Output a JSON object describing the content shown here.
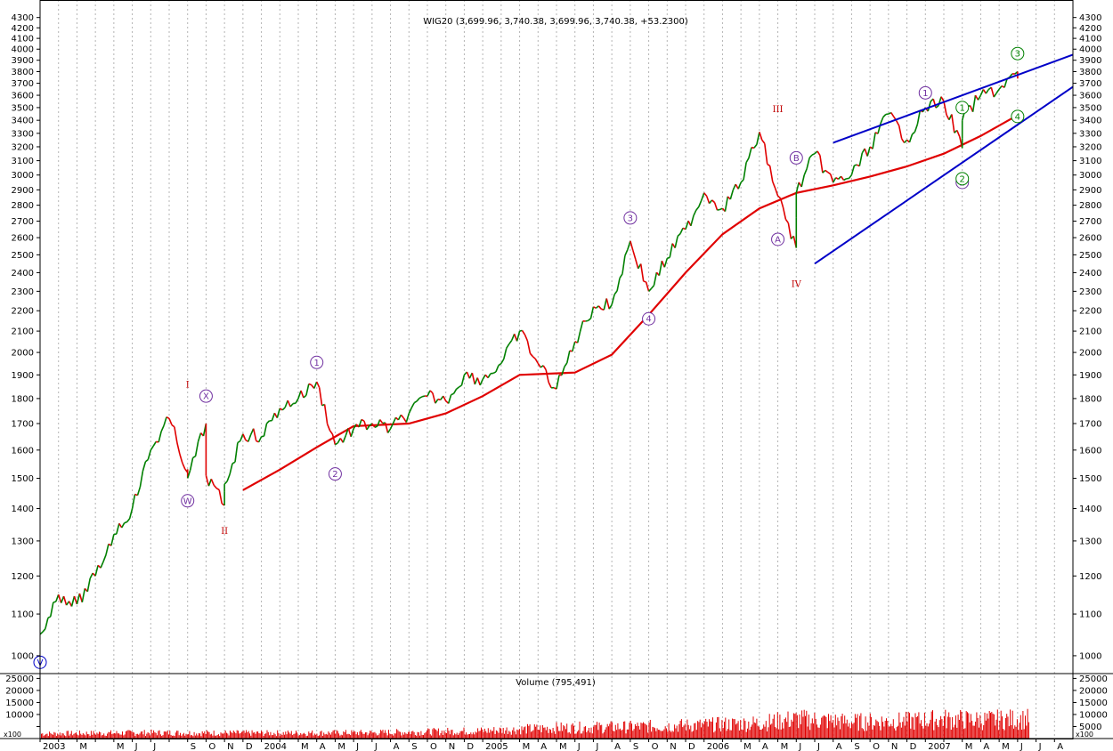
{
  "chart_data": {
    "type": "line",
    "title": "WIG20 (3,699.96, 3,740.38, 3,699.96, 3,740.38, +53.2300)",
    "price": {
      "scale": "log",
      "ylim": [
        960,
        4350
      ],
      "yticks": [
        1000,
        1100,
        1200,
        1300,
        1400,
        1500,
        1600,
        1700,
        1800,
        1900,
        2000,
        2100,
        2200,
        2300,
        2400,
        2500,
        2600,
        2700,
        2800,
        2900,
        3000,
        3100,
        3200,
        3300,
        3400,
        3500,
        3600,
        3700,
        3800,
        3900,
        4000,
        4100,
        4200,
        4300
      ],
      "yticklabels": [
        "1000",
        "1100",
        "1200",
        "1300",
        "1400",
        "1500",
        "1600",
        "1700",
        "1800",
        "1900",
        "2000",
        "2100",
        "2200",
        "2300",
        "2400",
        "2500",
        "2600",
        "2700",
        "2800",
        "2900",
        "3000",
        "3100",
        "3200",
        "3300",
        "3400",
        "3500",
        "3600",
        "3700",
        "3800",
        "3900",
        "4000",
        "4100",
        "4200",
        "4300"
      ],
      "xlim": [
        "2003-01",
        "2007-09"
      ],
      "series": [
        {
          "color": "#008000",
          "x": [
            "2003-01",
            "2003-02",
            "2003-03",
            "2003-04",
            "2003-05",
            "2003-06",
            "2003-07",
            "2003-08",
            "2003-09",
            "2003-09",
            "2003-10",
            "2003-10",
            "2003-11",
            "2003-11",
            "2003-12",
            "2004-01",
            "2004-02",
            "2004-03",
            "2004-04",
            "2004-05",
            "2004-06",
            "2004-07",
            "2004-08",
            "2004-09",
            "2004-10",
            "2004-11",
            "2004-12",
            "2005-01",
            "2005-02",
            "2005-03",
            "2005-04",
            "2005-05",
            "2005-06",
            "2005-07",
            "2005-08",
            "2005-09",
            "2005-10",
            "2005-11",
            "2005-12",
            "2006-01",
            "2006-02",
            "2006-03",
            "2006-04",
            "2006-05",
            "2006-06",
            "2006-06",
            "2006-07",
            "2006-08",
            "2006-09",
            "2006-10",
            "2006-11",
            "2006-12",
            "2007-01",
            "2007-02",
            "2007-03",
            "2007-03",
            "2007-04",
            "2007-05",
            "2007-06",
            "2007-06"
          ],
          "values": [
            1050,
            1150,
            1125,
            1200,
            1320,
            1400,
            1600,
            1720,
            1520,
            1500,
            1700,
            1510,
            1410,
            1480,
            1660,
            1650,
            1760,
            1800,
            1870,
            1620,
            1680,
            1700,
            1680,
            1740,
            1810,
            1790,
            1900,
            1880,
            1950,
            2100,
            1950,
            1840,
            2050,
            2220,
            2230,
            2580,
            2300,
            2480,
            2650,
            2880,
            2780,
            2950,
            3310,
            2860,
            2540,
            2880,
            3150,
            2950,
            3000,
            3200,
            3450,
            3250,
            3500,
            3550,
            3190,
            3400,
            3600,
            3650,
            3800,
            3740
          ]
        }
      ],
      "moving_average": {
        "color": "#e00000",
        "x": [
          "2003-12",
          "2004-02",
          "2004-04",
          "2004-06",
          "2004-09",
          "2004-11",
          "2005-01",
          "2005-03",
          "2005-06",
          "2005-08",
          "2005-10",
          "2005-12",
          "2006-02",
          "2006-04",
          "2006-06",
          "2006-08",
          "2006-10",
          "2006-12",
          "2007-02",
          "2007-04",
          "2007-06"
        ],
        "values": [
          1460,
          1530,
          1610,
          1690,
          1700,
          1740,
          1810,
          1900,
          1910,
          1990,
          2180,
          2400,
          2620,
          2780,
          2880,
          2930,
          2990,
          3060,
          3150,
          3280,
          3440
        ]
      },
      "trendlines": [
        {
          "color": "#0000c8",
          "x": [
            "2006-08",
            "2007-09"
          ],
          "values": [
            3230,
            3950
          ]
        },
        {
          "color": "#0000c8",
          "x": [
            "2006-07",
            "2007-09"
          ],
          "values": [
            2450,
            3670
          ]
        }
      ],
      "annotations": [
        {
          "text": "I",
          "x": "2003-09",
          "y": 1860,
          "color": "#c00000",
          "shape": "roman"
        },
        {
          "text": "II",
          "x": "2003-11",
          "y": 1330,
          "color": "#c00000",
          "shape": "roman"
        },
        {
          "text": "III",
          "x": "2006-05",
          "y": 3490,
          "color": "#c00000",
          "shape": "roman"
        },
        {
          "text": "IV",
          "x": "2006-06",
          "y": 2340,
          "color": "#c00000",
          "shape": "roman"
        },
        {
          "text": "W",
          "x": "2003-09",
          "y": 1425,
          "color": "#7030a0",
          "shape": "circle"
        },
        {
          "text": "X",
          "x": "2003-10",
          "y": 1810,
          "color": "#7030a0",
          "shape": "circle"
        },
        {
          "text": "1",
          "x": "2004-04",
          "y": 1955,
          "color": "#7030a0",
          "shape": "circle"
        },
        {
          "text": "2",
          "x": "2004-05",
          "y": 1515,
          "color": "#7030a0",
          "shape": "circle"
        },
        {
          "text": "3",
          "x": "2005-09",
          "y": 2720,
          "color": "#7030a0",
          "shape": "circle"
        },
        {
          "text": "4",
          "x": "2005-10",
          "y": 2160,
          "color": "#7030a0",
          "shape": "circle"
        },
        {
          "text": "A",
          "x": "2006-05",
          "y": 2590,
          "color": "#7030a0",
          "shape": "circle"
        },
        {
          "text": "B",
          "x": "2006-06",
          "y": 3120,
          "color": "#7030a0",
          "shape": "circle"
        },
        {
          "text": "1",
          "x": "2007-01",
          "y": 3620,
          "color": "#7030a0",
          "shape": "circle"
        },
        {
          "text": "2",
          "x": "2007-03",
          "y": 2950,
          "color": "#7030a0",
          "shape": "circle"
        },
        {
          "text": "1",
          "x": "2007-03",
          "y": 3500,
          "color": "#008000",
          "shape": "circle"
        },
        {
          "text": "2",
          "x": "2007-03",
          "y": 2975,
          "color": "#008000",
          "shape": "circle"
        },
        {
          "text": "3",
          "x": "2007-06",
          "y": 3960,
          "color": "#008000",
          "shape": "circle"
        },
        {
          "text": "4",
          "x": "2007-06",
          "y": 3430,
          "color": "#008000",
          "shape": "circle"
        },
        {
          "text": "V",
          "x": "2003-01",
          "y": 985,
          "color": "#0000c8",
          "shape": "circle"
        }
      ]
    },
    "volume": {
      "title": "Volume (795,491)",
      "color": "#e00000",
      "ylim": [
        0,
        27000
      ],
      "yticks": [
        5000,
        10000,
        15000,
        20000,
        25000
      ],
      "yticklabels": [
        "5000",
        "10000",
        "15000",
        "20000",
        "25000"
      ],
      "unit": "x100",
      "x": [
        "2003-01",
        "2003-07",
        "2004-01",
        "2004-07",
        "2005-01",
        "2005-05",
        "2005-09",
        "2006-01",
        "2006-04",
        "2006-06",
        "2006-09",
        "2006-12",
        "2007-02",
        "2007-04",
        "2007-06"
      ],
      "values": [
        2500,
        3000,
        2800,
        3000,
        4000,
        5500,
        6000,
        7000,
        8000,
        10000,
        8500,
        9000,
        10000,
        9500,
        10000
      ]
    },
    "xaxis": {
      "ticks": [
        "2003-01",
        "2003-02",
        "2003-03",
        "2003-04",
        "2003-05",
        "2003-06",
        "2003-07",
        "2003-08",
        "2003-09",
        "2003-10",
        "2003-11",
        "2003-12",
        "2004-01",
        "2004-02",
        "2004-03",
        "2004-04",
        "2004-05",
        "2004-06",
        "2004-07",
        "2004-08",
        "2004-09",
        "2004-10",
        "2004-11",
        "2004-12",
        "2005-01",
        "2005-02",
        "2005-03",
        "2005-04",
        "2005-05",
        "2005-06",
        "2005-07",
        "2005-08",
        "2005-09",
        "2005-10",
        "2005-11",
        "2005-12",
        "2006-01",
        "2006-02",
        "2006-03",
        "2006-04",
        "2006-05",
        "2006-06",
        "2006-07",
        "2006-08",
        "2006-09",
        "2006-10",
        "2006-11",
        "2006-12",
        "2007-01",
        "2007-02",
        "2007-03",
        "2007-04",
        "2007-05",
        "2007-06",
        "2007-07",
        "2007-08"
      ],
      "ticklabels": [
        "2003",
        "",
        "M",
        "",
        "M",
        "J",
        "J",
        "",
        "S",
        "O",
        "N",
        "D",
        "2004",
        "",
        "M",
        "A",
        "M",
        "J",
        "J",
        "A",
        "S",
        "O",
        "N",
        "D",
        "2005",
        "",
        "M",
        "A",
        "M",
        "J",
        "J",
        "A",
        "S",
        "O",
        "N",
        "D",
        "2006",
        "",
        "M",
        "A",
        "M",
        "J",
        "J",
        "A",
        "S",
        "O",
        "N",
        "D",
        "2007",
        "",
        "M",
        "A",
        "M",
        "J",
        "J",
        "A"
      ]
    },
    "grid": "vertical dashed",
    "legend": "none"
  }
}
